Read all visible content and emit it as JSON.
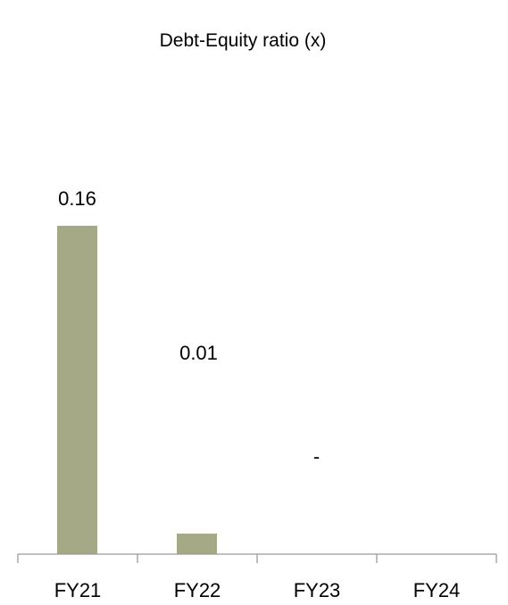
{
  "chart_data": {
    "type": "bar",
    "title": "Debt-Equity ratio (x)",
    "xlabel": "",
    "ylabel": "",
    "categories": [
      "FY21",
      "FY22",
      "FY23",
      "FY24"
    ],
    "values": [
      0.16,
      0.01,
      0,
      null
    ],
    "data_labels": [
      "0.16",
      "0.01",
      "-",
      ""
    ],
    "ylim": [
      0,
      0.16
    ],
    "grid": false,
    "legend": "none",
    "colors": {
      "bar": "#a5a985",
      "axis": "#9a9a9a",
      "text": "#000000"
    }
  }
}
